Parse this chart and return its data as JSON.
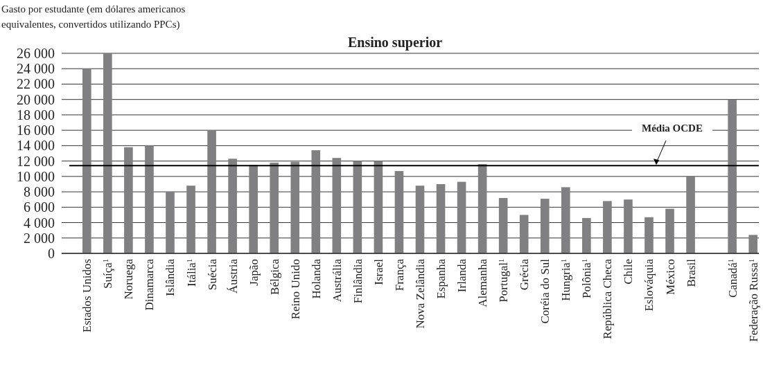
{
  "chart_data": {
    "type": "bar",
    "title": "Ensino superior",
    "ylabel": "Gasto por estudante (em dólares americanos equivalentes, convertidos utilizando PPCs)",
    "categories": [
      "Estados Unidos",
      "Suíça$^{1}$",
      "Noruega",
      "Dinamarca",
      "Islândia",
      "Itália$^{1}$",
      "Suécia",
      "Áustria",
      "Japão",
      "Bélgica",
      "Reino Unido",
      "Holanda",
      "Austrália",
      "Finlândia",
      "Israel",
      "França",
      "Nova Zelândia",
      "Espanha",
      "Irlanda",
      "Alemanha",
      "Portugal$^{1}$",
      "Grécia",
      "Coréia do Sul",
      "Hungria$^{1}$",
      "Polônia$^{1}$",
      "República Checa",
      "Chile",
      "Eslováquia",
      "México",
      "Brasil",
      null,
      "Canadá$^{1}$",
      "Federação Russa$^{1}$"
    ],
    "values": [
      24000,
      26000,
      13800,
      14000,
      8000,
      8800,
      16000,
      12300,
      11500,
      11800,
      11900,
      13400,
      12400,
      12000,
      12000,
      10700,
      8800,
      9000,
      9300,
      11600,
      7200,
      5000,
      7100,
      8600,
      4600,
      6800,
      7000,
      4700,
      5800,
      10000,
      null,
      20000,
      2400
    ],
    "color": "#808083",
    "ylim": [
      0,
      26000
    ],
    "yticks": [
      {
        "value": 0,
        "label": "0"
      },
      {
        "value": 2000,
        "label": "2 000"
      },
      {
        "value": 4000,
        "label": "4 000"
      },
      {
        "value": 6000,
        "label": "6 000"
      },
      {
        "value": 8000,
        "label": "8 000"
      },
      {
        "value": 10000,
        "label": "10 000"
      },
      {
        "value": 12000,
        "label": "12 000"
      },
      {
        "value": 14000,
        "label": "14 000"
      },
      {
        "value": 16000,
        "label": "16 000"
      },
      {
        "value": 18000,
        "label": "18 000"
      },
      {
        "value": 20000,
        "label": "20 000"
      },
      {
        "value": 22000,
        "label": "22 000"
      },
      {
        "value": 24000,
        "label": "24 000"
      },
      {
        "value": 26000,
        "label": "26 000"
      }
    ],
    "grid": "y",
    "ref_lines": [
      {
        "axis": "y",
        "value": 11400,
        "label": "Média OCDE",
        "color": "#000000"
      }
    ]
  }
}
